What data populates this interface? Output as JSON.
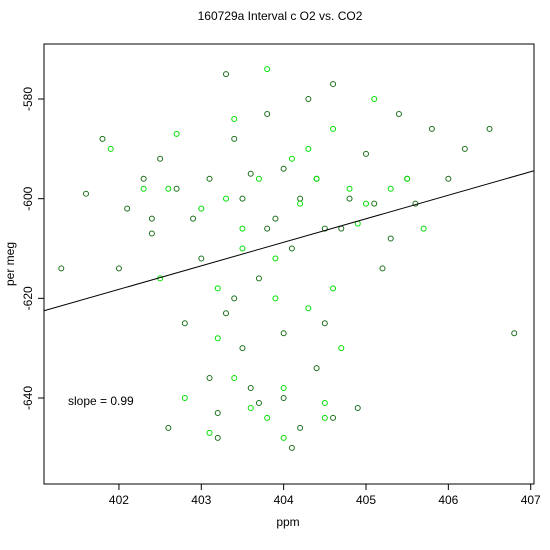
{
  "chart_data": {
    "type": "scatter",
    "title": "160729a   Interval c O2 vs. CO2",
    "x_label": "ppm",
    "y_label": "per meg",
    "annotation": "slope =  0.99",
    "xlim": [
      401.09,
      407.04
    ],
    "ylim": [
      -657.26,
      -568.96
    ],
    "xticks": [
      402,
      403,
      404,
      405,
      406,
      407
    ],
    "yticks": [
      -580,
      -600,
      -620,
      -640
    ],
    "fit_line": {
      "color": "#000000",
      "x": [
        401.09,
        407.04
      ],
      "y": [
        -622.5,
        -594.4
      ]
    },
    "series": [
      {
        "color": "#1a6e1a",
        "x": [
          401.3,
          401.6,
          401.8,
          402.0,
          402.1,
          402.3,
          402.4,
          402.5,
          402.6,
          402.7,
          402.8,
          402.9,
          403.0,
          403.1,
          403.1,
          403.2,
          403.3,
          403.4,
          403.5,
          403.5,
          403.6,
          403.7,
          403.8,
          403.9,
          404.0,
          404.0,
          404.1,
          404.2,
          404.3,
          404.4,
          404.5,
          404.6,
          404.7,
          404.8,
          404.9,
          405.0,
          405.1,
          405.2,
          405.3,
          405.4,
          405.5,
          405.6,
          405.8,
          406.0,
          406.2,
          406.5,
          406.8,
          403.2,
          403.4,
          403.6,
          403.8,
          404.0,
          404.2,
          404.4,
          404.6,
          403.3,
          403.7,
          404.1,
          404.5,
          402.4
        ],
        "y": [
          -614,
          -599,
          -588,
          -614,
          -602,
          -596,
          -607,
          -592,
          -646,
          -598,
          -625,
          -604,
          -612,
          -596,
          -636,
          -643,
          -575,
          -588,
          -600,
          -630,
          -595,
          -616,
          -583,
          -604,
          -594,
          -640,
          -610,
          -600,
          -580,
          -596,
          -625,
          -577,
          -606,
          -600,
          -642,
          -591,
          -601,
          -614,
          -608,
          -583,
          -596,
          -601,
          -586,
          -596,
          -590,
          -586,
          -627,
          -648,
          -620,
          -638,
          -606,
          -627,
          -646,
          -634,
          -644,
          -623,
          -641,
          -650,
          -606,
          -604
        ]
      },
      {
        "color": "#00e000",
        "x": [
          401.9,
          402.3,
          402.5,
          402.7,
          402.8,
          403.0,
          403.1,
          403.2,
          403.3,
          403.4,
          403.5,
          403.6,
          403.7,
          403.8,
          403.9,
          404.0,
          404.1,
          404.2,
          404.3,
          404.4,
          404.5,
          404.6,
          404.7,
          404.8,
          404.9,
          405.0,
          405.1,
          405.3,
          405.5,
          405.7,
          403.2,
          403.5,
          403.8,
          404.0,
          404.3,
          404.6,
          403.4,
          403.9,
          404.5,
          402.6
        ],
        "y": [
          -590,
          -598,
          -616,
          -587,
          -640,
          -602,
          -647,
          -618,
          -600,
          -584,
          -606,
          -642,
          -596,
          -574,
          -612,
          -638,
          -592,
          -601,
          -622,
          -596,
          -644,
          -586,
          -630,
          -598,
          -605,
          -601,
          -580,
          -598,
          -596,
          -606,
          -628,
          -610,
          -644,
          -648,
          -590,
          -618,
          -636,
          -620,
          -641,
          -598
        ]
      }
    ]
  }
}
